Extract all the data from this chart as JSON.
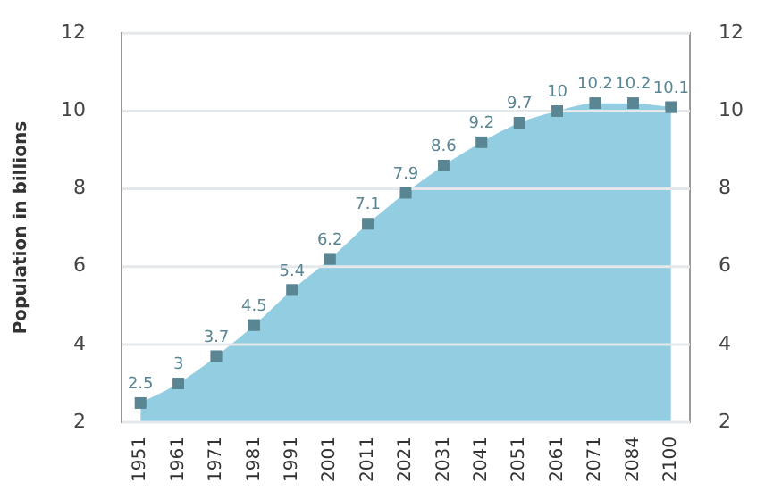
{
  "chart_data": {
    "type": "area",
    "ylabel": "Population in billions",
    "categories": [
      "1951",
      "1961",
      "1971",
      "1981",
      "1991",
      "2001",
      "2011",
      "2021",
      "2031",
      "2041",
      "2051",
      "2061",
      "2071",
      "2084",
      "2100"
    ],
    "series": [
      {
        "color": "#92cde2",
        "colors": [
          "#5a8593",
          "#5a8593",
          "#5a8593",
          "#5a8593",
          "#5a8593",
          "#5a8593",
          "#5a8593",
          "#5a8593",
          "#5a8593",
          "#5a8593",
          "#5a8593",
          "#5a8593",
          "#5a8593",
          "#5a8593",
          "#5a8593"
        ],
        "values": [
          2.5,
          3,
          3.7,
          4.5,
          5.4,
          6.2,
          7.1,
          7.9,
          8.6,
          9.2,
          9.7,
          10,
          10.2,
          10.2,
          10.1
        ]
      }
    ],
    "ylim": [
      2,
      12
    ],
    "yticks": [
      2,
      4,
      6,
      8,
      10,
      12
    ],
    "y2lim": [
      2,
      12
    ],
    "y2ticks": [
      2,
      4,
      6,
      8,
      10,
      12
    ],
    "grid": "y",
    "legend": false,
    "marker": "square",
    "data_labels": true
  }
}
